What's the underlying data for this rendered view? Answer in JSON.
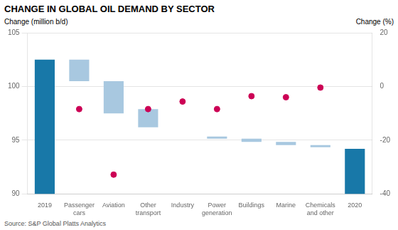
{
  "chart_data": {
    "type": "bar",
    "title": "CHANGE IN GLOBAL OIL DEMAND BY SECTOR",
    "y_label": "Change (million b/d)",
    "y2_label": "Change (%)",
    "source": "Source: S&P Global Platts Analytics",
    "categories": [
      "2019",
      "Passenger\ncars",
      "Aviation",
      "Other\ntransport",
      "Industry",
      "Power\ngeneration",
      "Buildings",
      "Marine",
      "Chemicals\nand other",
      "2020"
    ],
    "series": [
      {
        "type": "bar",
        "values": [
          [
            90.0,
            102.5
          ],
          [
            100.5,
            102.5
          ],
          [
            97.5,
            100.5
          ],
          [
            96.2,
            97.9
          ],
          [
            95.8,
            95.8
          ],
          [
            95.35,
            95.15
          ],
          [
            95.15,
            94.85
          ],
          [
            94.85,
            94.55
          ],
          [
            94.55,
            94.35
          ],
          [
            90.0,
            94.2
          ]
        ],
        "colors": [
          "#1878a8",
          "#a8c8e0",
          "#a8c8e0",
          "#a8c8e0",
          "#a8c8e0",
          "#a8c8e0",
          "#a8c8e0",
          "#a8c8e0",
          "#a8c8e0",
          "#1878a8"
        ]
      },
      {
        "type": "scatter",
        "marker": "circle",
        "color": "#cc0055",
        "values": [
          null,
          97.9,
          91.8,
          97.9,
          98.6,
          97.9,
          99.1,
          99.0,
          99.9,
          null
        ]
      }
    ],
    "ylim": [
      90,
      105
    ],
    "yticks": [
      90,
      95,
      100,
      105
    ],
    "y2lim": [
      -40,
      20
    ],
    "y2ticks": [
      -40,
      -20,
      0,
      20
    ],
    "grid": true
  }
}
